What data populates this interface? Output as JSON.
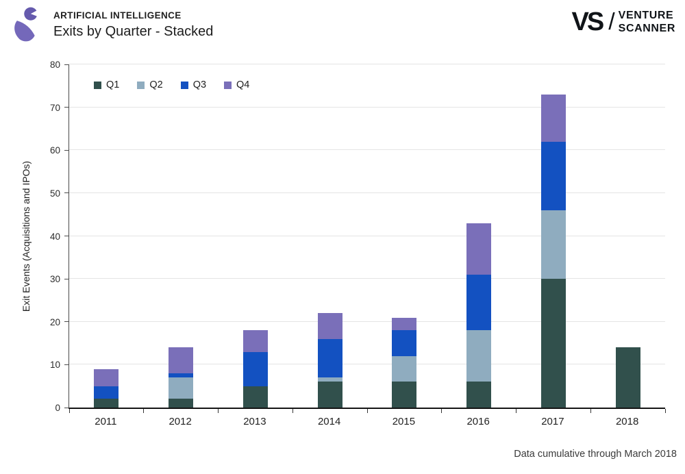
{
  "header": {
    "category": "ARTIFICIAL INTELLIGENCE",
    "title": "Exits by Quarter - Stacked"
  },
  "brand": {
    "mark": "VS",
    "slash": "/",
    "name_line1": "VENTURE",
    "name_line2": "SCANNER"
  },
  "icons": {
    "category_icon": "ai-person-icon",
    "category_icon_color": "#6E63B5"
  },
  "footer": {
    "note": "Data cumulative through March 2018"
  },
  "chart_data": {
    "type": "bar",
    "stacked": true,
    "title": "Exits by Quarter - Stacked",
    "categories": [
      "2011",
      "2012",
      "2013",
      "2014",
      "2015",
      "2016",
      "2017",
      "2018"
    ],
    "series": [
      {
        "name": "Q1",
        "color": "#31504C",
        "values": [
          2,
          2,
          5,
          6,
          6,
          6,
          30,
          14
        ]
      },
      {
        "name": "Q2",
        "color": "#8FACBF",
        "values": [
          0,
          5,
          0,
          1,
          6,
          12,
          16,
          0
        ]
      },
      {
        "name": "Q3",
        "color": "#1351C1",
        "values": [
          3,
          1,
          8,
          9,
          6,
          13,
          16,
          0
        ]
      },
      {
        "name": "Q4",
        "color": "#7A6FB9",
        "values": [
          4,
          6,
          5,
          6,
          3,
          12,
          11,
          0
        ]
      }
    ],
    "totals": [
      9,
      14,
      18,
      22,
      21,
      43,
      73,
      14
    ],
    "xlabel": "",
    "ylabel": "Exit Events (Acquisitions and IPOs)",
    "ylim": [
      0,
      80
    ],
    "yticks": [
      0,
      10,
      20,
      30,
      40,
      50,
      60,
      70,
      80
    ],
    "grid": true,
    "legend_position": "top-left"
  }
}
